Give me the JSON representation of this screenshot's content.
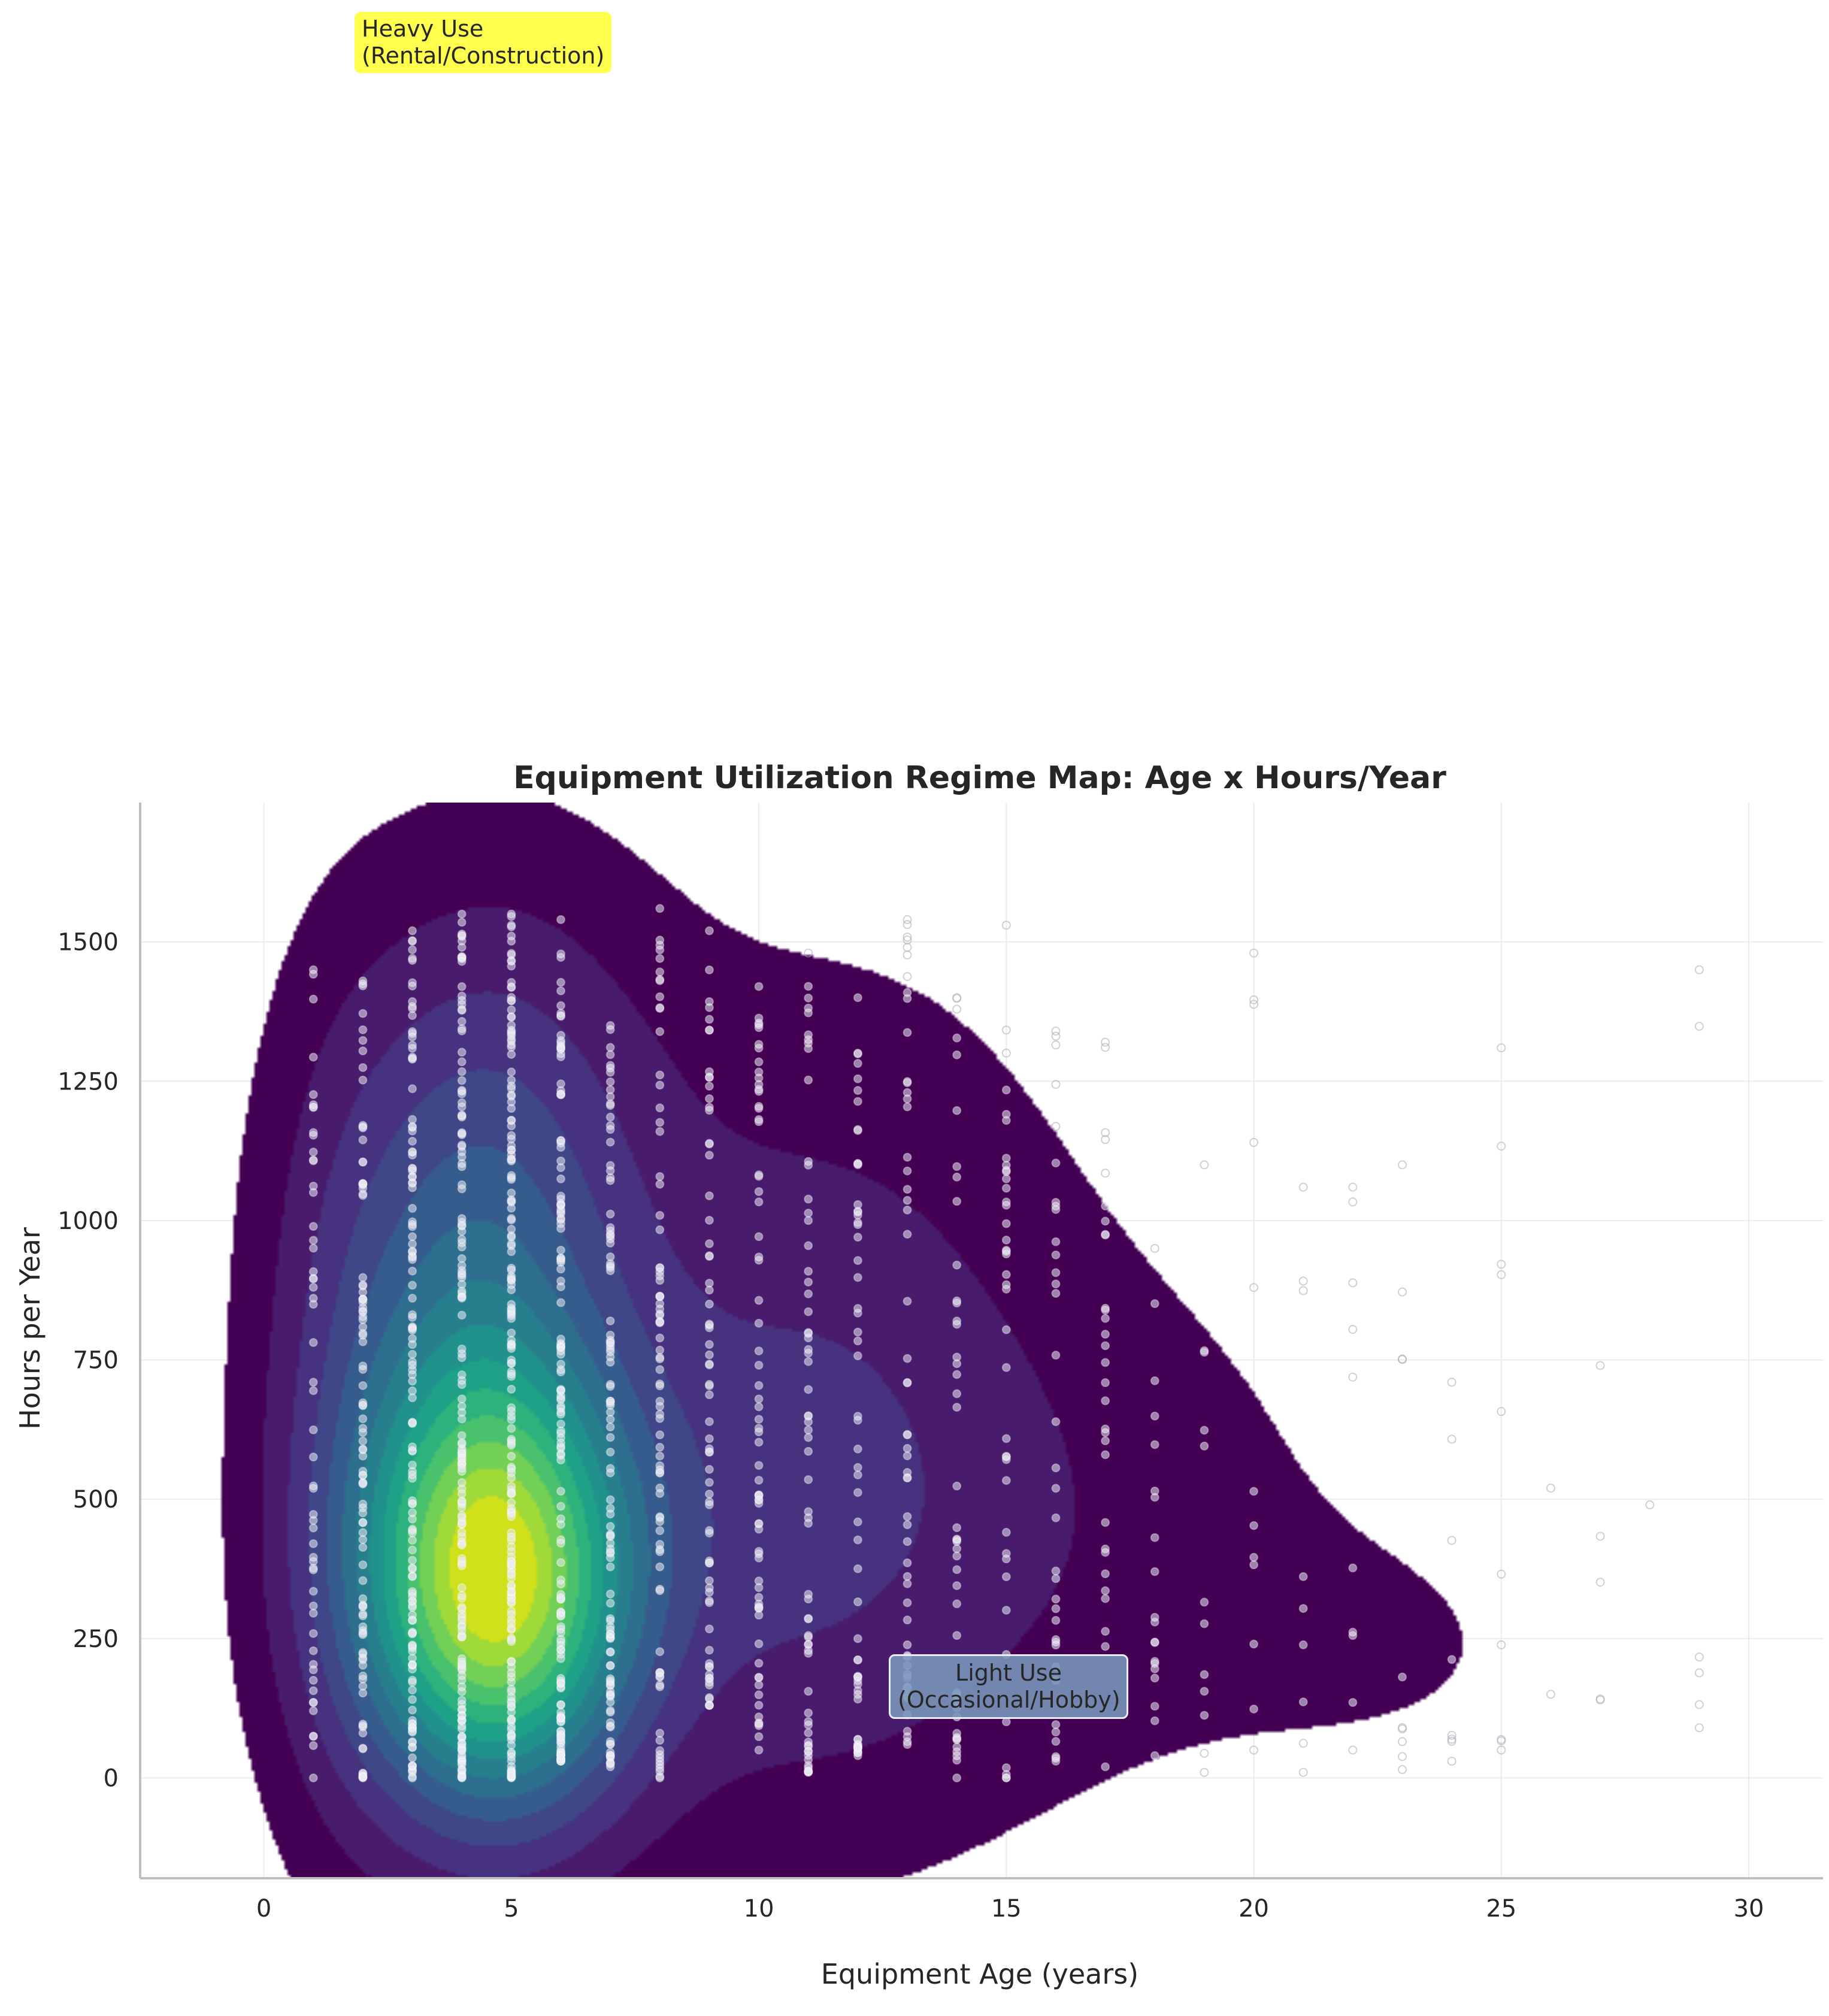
{
  "chart_data": {
    "type": "heatmap",
    "title": "Equipment Utilization Regime Map: Age x Hours/Year",
    "xlabel": "Equipment Age (years)",
    "ylabel": "Hours per Year",
    "xlim": [
      -2.5,
      31.5
    ],
    "ylim": [
      -180,
      1750
    ],
    "xticks": [
      0,
      5,
      10,
      15,
      20,
      25,
      30
    ],
    "yticks": [
      0,
      250,
      500,
      750,
      1000,
      1250,
      1500
    ],
    "grid": true,
    "colormap": "viridis",
    "colors": [
      "#440154",
      "#481b6d",
      "#46327e",
      "#3f4788",
      "#365c8d",
      "#2e6e8e",
      "#277f8e",
      "#21918c",
      "#1fa187",
      "#2db27d",
      "#4ac16d",
      "#73d056",
      "#a0da39",
      "#d0e11c"
    ],
    "density_kernels": [
      {
        "x": 4.7,
        "y": 330,
        "sx": 1.9,
        "sy": 260,
        "w": 1.0
      },
      {
        "x": 4.0,
        "y": 700,
        "sx": 2.0,
        "sy": 420,
        "w": 0.38
      },
      {
        "x": 5.0,
        "y": 1150,
        "sx": 2.4,
        "sy": 330,
        "w": 0.14
      },
      {
        "x": 10.5,
        "y": 450,
        "sx": 3.5,
        "sy": 360,
        "w": 0.2
      },
      {
        "x": 11.5,
        "y": 1000,
        "sx": 3.3,
        "sy": 380,
        "w": 0.07
      },
      {
        "x": 17.5,
        "y": 450,
        "sx": 3.5,
        "sy": 330,
        "w": 0.055
      },
      {
        "x": 23.0,
        "y": 230,
        "sx": 2.8,
        "sy": 170,
        "w": 0.035
      },
      {
        "x": 1.5,
        "y": 600,
        "sx": 1.1,
        "sy": 520,
        "w": 0.07
      }
    ],
    "scatter_columns": [
      {
        "x": 1,
        "n": 55,
        "ymin": 0,
        "ymax": 1450
      },
      {
        "x": 2,
        "n": 100,
        "ymin": 0,
        "ymax": 1430
      },
      {
        "x": 3,
        "n": 140,
        "ymin": 0,
        "ymax": 1520
      },
      {
        "x": 4,
        "n": 170,
        "ymin": 0,
        "ymax": 1550
      },
      {
        "x": 5,
        "n": 190,
        "ymin": 0,
        "ymax": 1550
      },
      {
        "x": 6,
        "n": 150,
        "ymin": 30,
        "ymax": 1540
      },
      {
        "x": 7,
        "n": 110,
        "ymin": 20,
        "ymax": 1350
      },
      {
        "x": 8,
        "n": 85,
        "ymin": 0,
        "ymax": 1560
      },
      {
        "x": 9,
        "n": 70,
        "ymin": 130,
        "ymax": 1520
      },
      {
        "x": 10,
        "n": 70,
        "ymin": 50,
        "ymax": 1420
      },
      {
        "x": 11,
        "n": 65,
        "ymin": 10,
        "ymax": 1480
      },
      {
        "x": 12,
        "n": 60,
        "ymin": 40,
        "ymax": 1400
      },
      {
        "x": 13,
        "n": 55,
        "ymin": 60,
        "ymax": 1540
      },
      {
        "x": 14,
        "n": 45,
        "ymin": 0,
        "ymax": 1400
      },
      {
        "x": 15,
        "n": 40,
        "ymin": 0,
        "ymax": 1530
      },
      {
        "x": 16,
        "n": 35,
        "ymin": 30,
        "ymax": 1340
      },
      {
        "x": 17,
        "n": 30,
        "ymin": 20,
        "ymax": 1320
      },
      {
        "x": 18,
        "n": 20,
        "ymin": 40,
        "ymax": 950
      },
      {
        "x": 19,
        "n": 12,
        "ymin": 10,
        "ymax": 1100
      },
      {
        "x": 20,
        "n": 12,
        "ymin": 50,
        "ymax": 1480
      },
      {
        "x": 21,
        "n": 9,
        "ymin": 10,
        "ymax": 1060
      },
      {
        "x": 22,
        "n": 10,
        "ymin": 50,
        "ymax": 1060
      },
      {
        "x": 23,
        "n": 10,
        "ymin": 15,
        "ymax": 1100
      },
      {
        "x": 24,
        "n": 8,
        "ymin": 30,
        "ymax": 710
      },
      {
        "x": 25,
        "n": 10,
        "ymin": 50,
        "ymax": 1310
      },
      {
        "x": 26,
        "n": 2,
        "ymin": 150,
        "ymax": 520
      },
      {
        "x": 27,
        "n": 5,
        "ymin": 140,
        "ymax": 740
      },
      {
        "x": 28,
        "n": 1,
        "ymin": 490,
        "ymax": 490
      },
      {
        "x": 29,
        "n": 6,
        "ymin": 90,
        "ymax": 1450
      }
    ]
  },
  "annotations": {
    "heavy": "Heavy Use\n(Rental/Construction)",
    "light": "Light Use\n(Occasional/Hobby)"
  }
}
